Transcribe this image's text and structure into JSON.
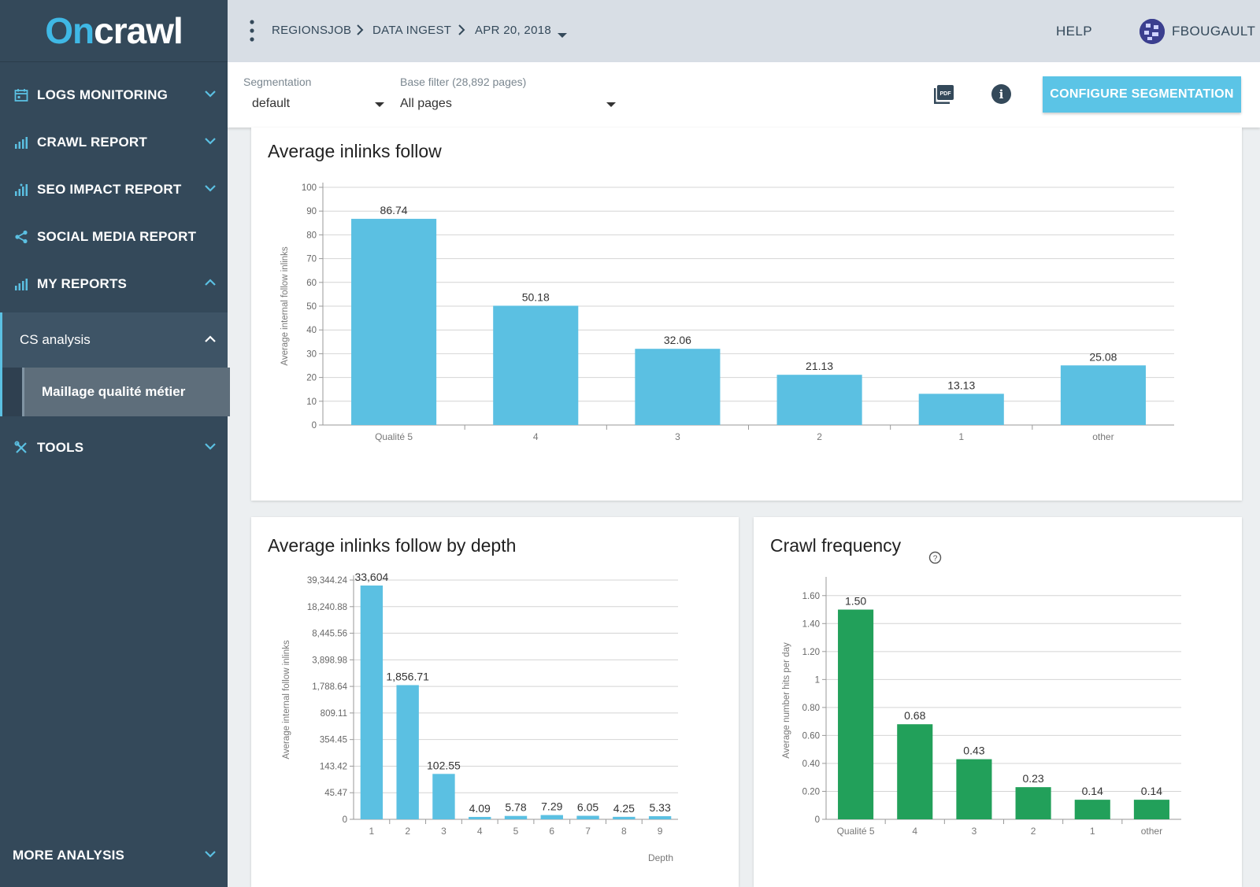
{
  "logo": {
    "part1": "On",
    "part2": "crawl"
  },
  "sidebar": {
    "items": [
      {
        "label": "LOGS MONITORING",
        "icon": "calendar-icon",
        "chevron": "down"
      },
      {
        "label": "CRAWL REPORT",
        "icon": "bar-chart-icon",
        "chevron": "down"
      },
      {
        "label": "SEO IMPACT REPORT",
        "icon": "bar-chart-icon",
        "chevron": "down"
      },
      {
        "label": "SOCIAL MEDIA REPORT",
        "icon": "share-icon",
        "chevron": "none"
      },
      {
        "label": "MY REPORTS",
        "icon": "bar-chart-icon",
        "chevron": "up"
      }
    ],
    "cs_analysis": "CS analysis",
    "cs_sub_item": "Maillage qualité métier",
    "tools": "TOOLS",
    "more_analysis": "MORE ANALYSIS"
  },
  "topbar": {
    "breadcrumb": [
      "REGIONSJOB",
      "DATA INGEST",
      "APR 20, 2018"
    ],
    "help": "HELP",
    "username": "FBOUGAULT"
  },
  "filters": {
    "segmentation_label": "Segmentation",
    "segmentation_value": "default",
    "base_filter_label": "Base filter (28,892 pages)",
    "base_filter_value": "All pages",
    "configure_button": "CONFIGURE SEGMENTATION"
  },
  "colors": {
    "sidebar": "#34495a",
    "accent": "#5bc4e6",
    "bar_blue": "#5bc0e2",
    "bar_green": "#22a05a"
  },
  "chart_data": [
    {
      "type": "bar",
      "title": "Average inlinks follow",
      "ylabel": "Average internal follow inlinks",
      "categories": [
        "Qualité 5",
        "4",
        "3",
        "2",
        "1",
        "other"
      ],
      "values": [
        86.74,
        50.18,
        32.06,
        21.13,
        13.13,
        25.08
      ],
      "value_labels": [
        "86.74",
        "50.18",
        "32.06",
        "21.13",
        "13.13",
        "25.08"
      ],
      "ylim": [
        0,
        100
      ],
      "yticks": [
        "0",
        "10",
        "20",
        "30",
        "40",
        "50",
        "60",
        "70",
        "80",
        "90",
        "100"
      ],
      "grid": true
    },
    {
      "type": "bar",
      "title": "Average inlinks follow by depth",
      "ylabel": "Average internal follow inlinks",
      "xlabel": "Depth",
      "categories": [
        "1",
        "2",
        "3",
        "4",
        "5",
        "6",
        "7",
        "8",
        "9"
      ],
      "values": [
        33604,
        1856.71,
        102.55,
        4.09,
        5.78,
        7.29,
        6.05,
        4.25,
        5.33
      ],
      "value_labels": [
        "33,604",
        "1,856.71",
        "102.55",
        "4.09",
        "5.78",
        "7.29",
        "6.05",
        "4.25",
        "5.33"
      ],
      "scale": "log",
      "yticks": [
        "0",
        "45.47",
        "143.42",
        "354.45",
        "809.11",
        "1,788.64",
        "3,898.98",
        "8,445.56",
        "18,240.88",
        "39,344.24"
      ],
      "ytick_values": [
        0,
        45.47,
        143.42,
        354.45,
        809.11,
        1788.64,
        3898.98,
        8445.56,
        18240.88,
        39344.24
      ],
      "grid": true
    },
    {
      "type": "bar",
      "title": "Crawl frequency",
      "ylabel": "Average number hits per day",
      "categories": [
        "Qualité 5",
        "4",
        "3",
        "2",
        "1",
        "other"
      ],
      "values": [
        1.5,
        0.68,
        0.43,
        0.23,
        0.14,
        0.14
      ],
      "value_labels": [
        "1.50",
        "0.68",
        "0.43",
        "0.23",
        "0.14",
        "0.14"
      ],
      "ylim": [
        0,
        1.7
      ],
      "yticks": [
        "0",
        "0.20",
        "0.40",
        "0.60",
        "0.80",
        "1",
        "1.20",
        "1.40",
        "1.60"
      ],
      "grid": true
    }
  ]
}
